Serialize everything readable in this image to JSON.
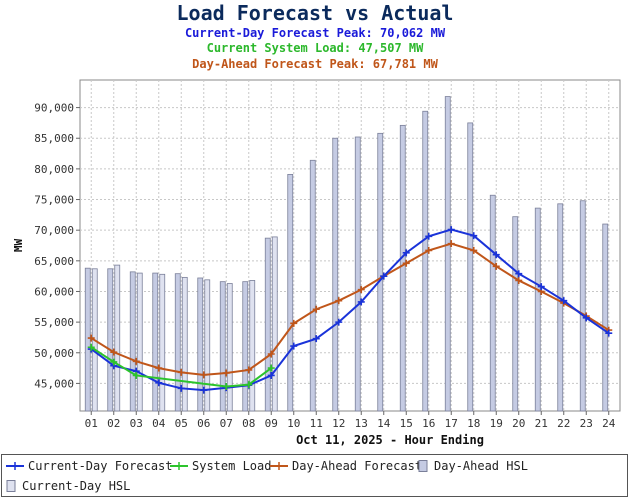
{
  "header": {
    "title": "Load Forecast vs Actual",
    "current_day_peak_label": "Current-Day Forecast Peak:",
    "current_day_peak_value": "70,062 MW",
    "system_load_label": "Current System Load:",
    "system_load_value": "47,507 MW",
    "day_ahead_peak_label": "Day-Ahead Forecast Peak:",
    "day_ahead_peak_value": "67,781 MW"
  },
  "colors": {
    "current_day": "#1a33d9",
    "system_load": "#2cc42c",
    "day_ahead": "#c0561a",
    "day_ahead_hsl": "#c5cbe3",
    "current_day_hsl": "#dfe2f0"
  },
  "chart_data": {
    "type": "line",
    "xlabel": "Oct 11, 2025 - Hour Ending",
    "ylabel": "MW",
    "categories": [
      "01",
      "02",
      "03",
      "04",
      "05",
      "06",
      "07",
      "08",
      "09",
      "10",
      "11",
      "12",
      "13",
      "14",
      "15",
      "16",
      "17",
      "18",
      "19",
      "20",
      "21",
      "22",
      "23",
      "24"
    ],
    "ylim": [
      40500,
      94500
    ],
    "yticks": [
      "45,000",
      "50,000",
      "55,000",
      "60,000",
      "65,000",
      "70,000",
      "75,000",
      "80,000",
      "85,000",
      "90,000"
    ],
    "ytick_values": [
      45000,
      50000,
      55000,
      60000,
      65000,
      70000,
      75000,
      80000,
      85000,
      90000
    ],
    "grid": true,
    "legend_position": "bottom",
    "series": [
      {
        "name": "Current-Day Forecast",
        "kind": "line",
        "marker": "plus",
        "values": [
          50600,
          47900,
          47000,
          45100,
          44200,
          43900,
          44300,
          44700,
          46300,
          51100,
          52300,
          55000,
          58300,
          62500,
          66300,
          69000,
          70100,
          69100,
          66000,
          62900,
          60800,
          58500,
          55700,
          53200
        ]
      },
      {
        "name": "System Load",
        "kind": "line",
        "marker": "plus",
        "values": [
          50900,
          48500,
          46300,
          null,
          null,
          null,
          44500,
          44800,
          47500,
          null,
          null,
          null,
          null,
          null,
          null,
          null,
          null,
          null,
          null,
          null,
          null,
          null,
          null,
          null
        ]
      },
      {
        "name": "Day-Ahead Forecast",
        "kind": "line",
        "marker": "plus",
        "values": [
          52400,
          50100,
          48600,
          47500,
          46800,
          46400,
          46700,
          47200,
          49800,
          54800,
          57100,
          58500,
          60300,
          62500,
          64600,
          66700,
          67800,
          66700,
          64100,
          61800,
          60000,
          58100,
          56000,
          53700
        ]
      },
      {
        "name": "Day-Ahead HSL",
        "kind": "bar",
        "values": [
          63800,
          63700,
          63200,
          63000,
          62900,
          62200,
          61600,
          61600,
          68700,
          79100,
          81400,
          85000,
          85200,
          85800,
          87100,
          89400,
          91800,
          87500,
          75700,
          72200,
          73600,
          74300,
          74800,
          71000
        ]
      },
      {
        "name": "Current-Day HSL",
        "kind": "bar",
        "values": [
          63700,
          64300,
          63000,
          62800,
          62300,
          61900,
          61300,
          61800,
          68900,
          null,
          null,
          null,
          null,
          null,
          null,
          null,
          null,
          null,
          null,
          null,
          null,
          null,
          null,
          null
        ]
      }
    ]
  }
}
